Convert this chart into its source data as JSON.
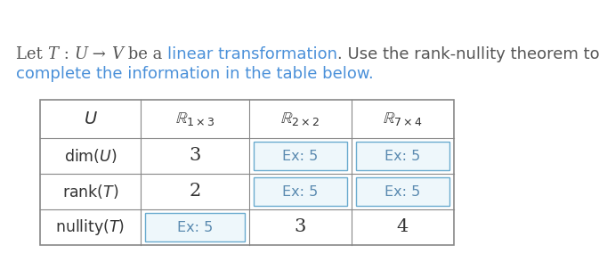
{
  "background_color": "#ffffff",
  "text_color_dark": "#555555",
  "text_color_blue": "#4a90d9",
  "table_border_color": "#888888",
  "example_cell_border": "#6aabcf",
  "example_cell_fill": "#eef7fb",
  "example_text_color": "#5a8ab0",
  "header_text_color": "#333333",
  "cell_text_color": "#333333",
  "line1_segments": [
    [
      "Let ",
      "#555555",
      "normal",
      "serif"
    ],
    [
      "T",
      "#555555",
      "italic",
      "serif"
    ],
    [
      " : ",
      "#555555",
      "normal",
      "serif"
    ],
    [
      "U",
      "#555555",
      "italic",
      "serif"
    ],
    [
      " → ",
      "#555555",
      "normal",
      "serif"
    ],
    [
      "V",
      "#555555",
      "italic",
      "serif"
    ],
    [
      " be a ",
      "#555555",
      "normal",
      "serif"
    ],
    [
      "linear transformation",
      "#4a90d9",
      "normal",
      "sans-serif"
    ],
    [
      ". Use the rank-nullity theorem to",
      "#555555",
      "normal",
      "sans-serif"
    ]
  ],
  "line2": "complete the information in the table below.",
  "line2_color": "#4a90d9",
  "fontsize_intro": 13.0,
  "fontsize_header": 13.0,
  "fontsize_cell": 13.0,
  "fontsize_example": 11.5
}
